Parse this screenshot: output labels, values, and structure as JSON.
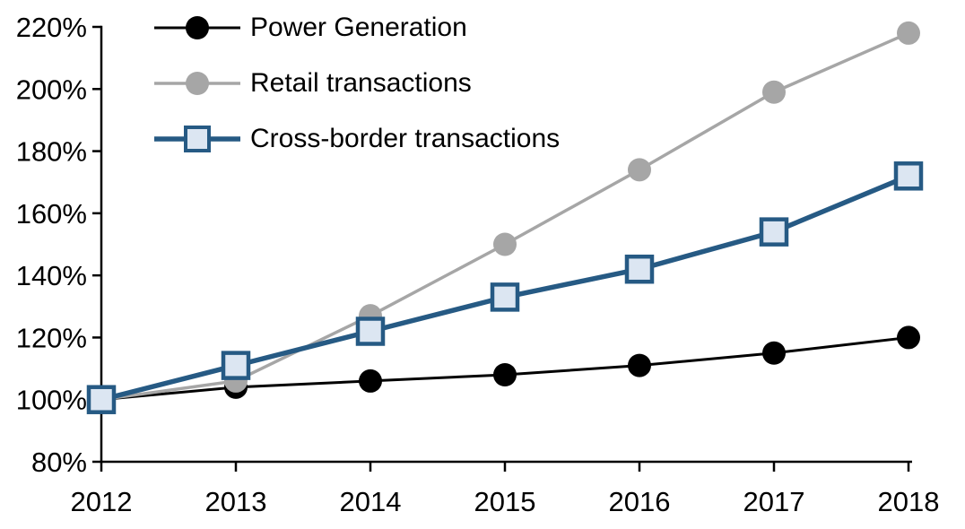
{
  "chart_data": {
    "type": "line",
    "title": "",
    "xlabel": "",
    "ylabel": "",
    "categories": [
      "2012",
      "2013",
      "2014",
      "2015",
      "2016",
      "2017",
      "2018"
    ],
    "series": [
      {
        "name": "Power Generation",
        "values": [
          100,
          104,
          106,
          108,
          111,
          115,
          120
        ],
        "color": "#000000",
        "marker": "circle",
        "marker_fill": "#000000",
        "line_width": 3
      },
      {
        "name": "Retail transactions",
        "values": [
          100,
          106,
          127,
          150,
          174,
          199,
          218
        ],
        "color": "#A6A6A6",
        "marker": "circle",
        "marker_fill": "#A6A6A6",
        "line_width": 3.5
      },
      {
        "name": "Cross-border transactions",
        "values": [
          100,
          111,
          122,
          133,
          142,
          154,
          172
        ],
        "color": "#265A84",
        "marker": "square",
        "marker_fill": "#DCE6F2",
        "line_width": 5.5
      }
    ],
    "ylim": [
      80,
      220
    ],
    "ytick_step": 20,
    "ytick_labels": [
      "80%",
      "100%",
      "120%",
      "140%",
      "160%",
      "180%",
      "200%",
      "220%"
    ],
    "grid": false,
    "legend_position": "top-left",
    "axis_color": "#000000"
  }
}
